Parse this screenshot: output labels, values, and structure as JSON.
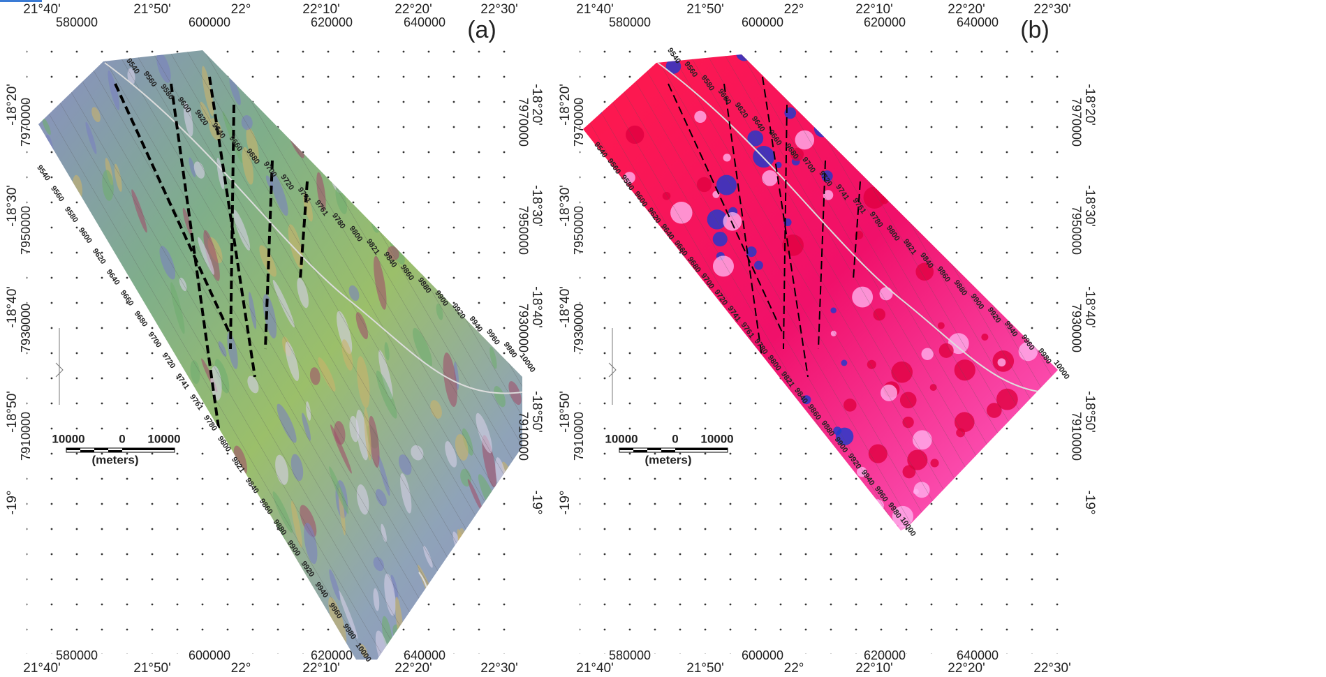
{
  "panels": [
    {
      "label": "(a)"
    },
    {
      "label": "(b)"
    }
  ],
  "longitudes": [
    "21°40'",
    "21°50'",
    "22°",
    "22°10'",
    "22°20'",
    "22°30'"
  ],
  "eastings": [
    "580000",
    "600000",
    "620000",
    "640000"
  ],
  "latitudes": [
    "-18°20'",
    "-18°30'",
    "-18°40'",
    "-18°50'",
    "-19°"
  ],
  "northings": [
    "7970000",
    "7950000",
    "7930000",
    "7910000"
  ],
  "flight_lines": [
    "9540",
    "9560",
    "9580",
    "9600",
    "9620",
    "9640",
    "9660",
    "9680",
    "9700",
    "9720",
    "9741",
    "9761",
    "9780",
    "9800",
    "9821",
    "9840",
    "9860",
    "9880",
    "9900",
    "9920",
    "9940",
    "9960",
    "9980",
    "10000"
  ],
  "scale_bar": {
    "left": "10000",
    "middle": "0",
    "right": "10000",
    "unit": "(meters)"
  }
}
